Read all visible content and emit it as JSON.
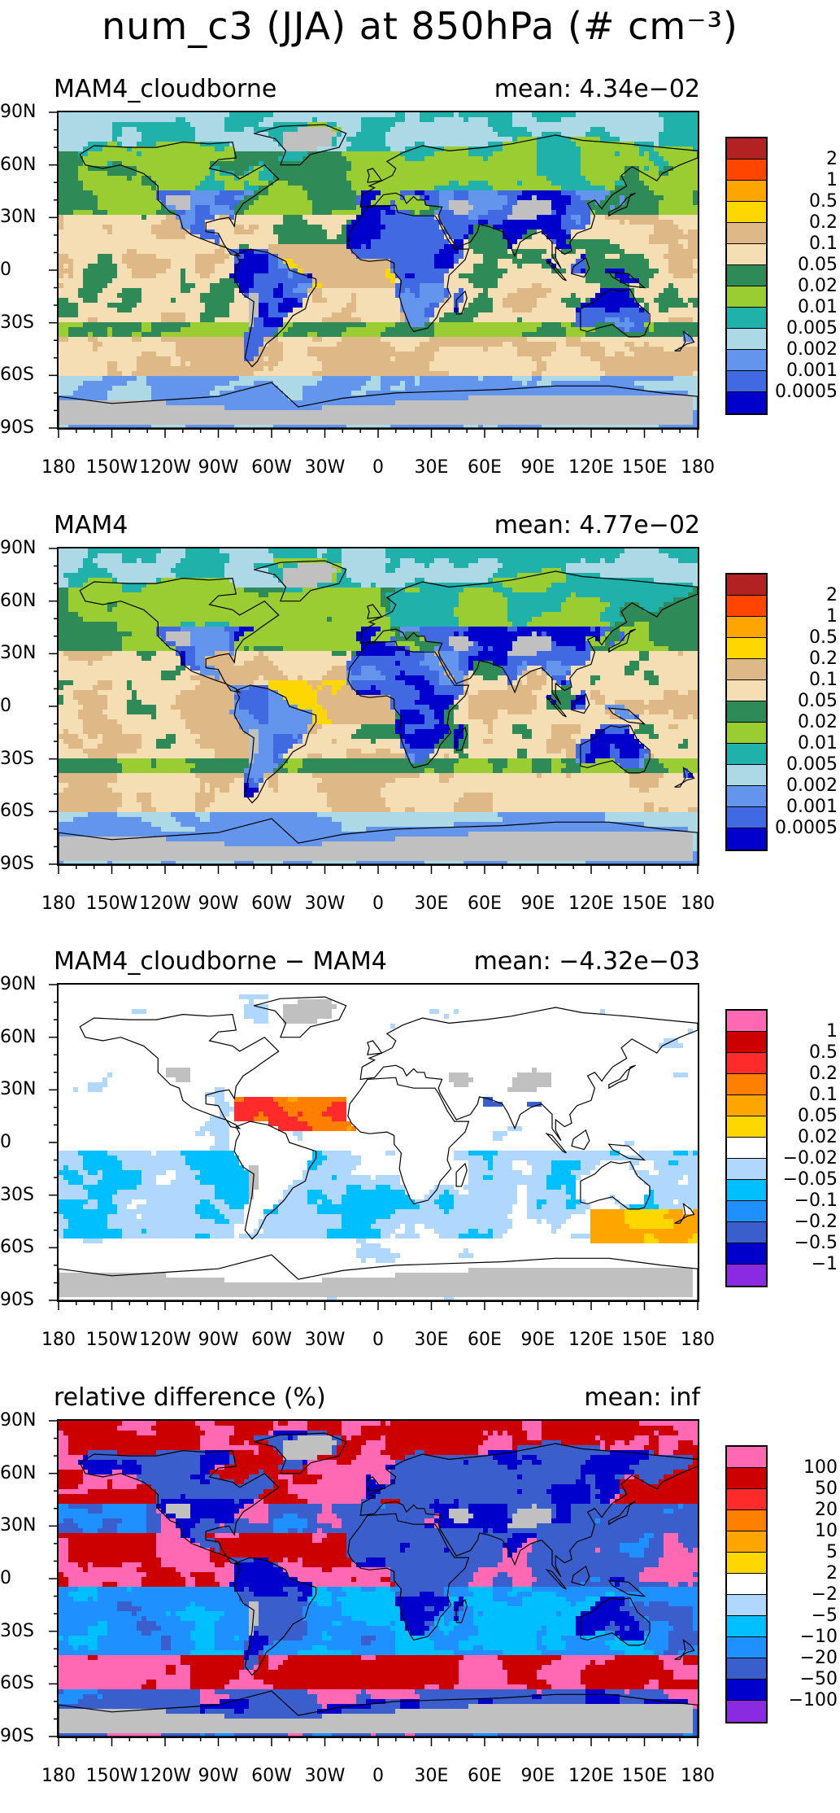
{
  "title": "num_c3 (JJA) at 850hPa (# cm⁻³)",
  "lat_labels": [
    "90N",
    "60N",
    "30N",
    "0",
    "30S",
    "60S",
    "90S"
  ],
  "lon_labels": [
    "180",
    "150W",
    "120W",
    "90W",
    "60W",
    "30W",
    "0",
    "30E",
    "60E",
    "90E",
    "120E",
    "150E",
    "180"
  ],
  "panels": [
    {
      "title": "MAM4_cloudborne",
      "mean_label": "mean:",
      "mean_value": "4.34e−02",
      "scale": "abs",
      "field_style": "cloudborne",
      "colorbar_labels": [
        "2",
        "1",
        "0.5",
        "0.2",
        "0.1",
        "0.05",
        "0.02",
        "0.01",
        "0.005",
        "0.002",
        "0.001",
        "0.0005"
      ],
      "colors": [
        "#b22222",
        "#ff4500",
        "#ffa500",
        "#ffd700",
        "#deb887",
        "#f5deb3",
        "#2e8b57",
        "#9acd32",
        "#20b2aa",
        "#add8e6",
        "#6495ed",
        "#4169e1",
        "#0000cd"
      ]
    },
    {
      "title": "MAM4",
      "mean_label": "mean:",
      "mean_value": "4.77e−02",
      "scale": "abs",
      "field_style": "mam4",
      "colorbar_labels": [
        "2",
        "1",
        "0.5",
        "0.2",
        "0.1",
        "0.05",
        "0.02",
        "0.01",
        "0.005",
        "0.002",
        "0.001",
        "0.0005"
      ],
      "colors": [
        "#b22222",
        "#ff4500",
        "#ffa500",
        "#ffd700",
        "#deb887",
        "#f5deb3",
        "#2e8b57",
        "#9acd32",
        "#20b2aa",
        "#add8e6",
        "#6495ed",
        "#4169e1",
        "#0000cd"
      ]
    },
    {
      "title": "MAM4_cloudborne − MAM4",
      "mean_label": "mean:",
      "mean_value": "−4.32e−03",
      "scale": "diff",
      "field_style": "diff",
      "colorbar_labels": [
        "1",
        "0.5",
        "0.2",
        "0.1",
        "0.05",
        "0.02",
        "−0.02",
        "−0.05",
        "−0.1",
        "−0.2",
        "−0.5",
        "−1"
      ],
      "colors": [
        "#ff69b4",
        "#cd0000",
        "#ff2a2a",
        "#ff7f00",
        "#ffa500",
        "#ffd700",
        "#ffffff",
        "#b0d8ff",
        "#00bfff",
        "#1e90ff",
        "#3a5fcd",
        "#0000cd",
        "#8a2be2"
      ]
    },
    {
      "title": "relative difference (%)",
      "mean_label": "mean:",
      "mean_value": "inf",
      "scale": "rel",
      "field_style": "rel",
      "colorbar_labels": [
        "100",
        "50",
        "20",
        "10",
        "5",
        "2",
        "−2",
        "−5",
        "−10",
        "−20",
        "−50",
        "−100"
      ],
      "colors": [
        "#ff69b4",
        "#cd0000",
        "#ff2a2a",
        "#ff7f00",
        "#ffa500",
        "#ffd700",
        "#ffffff",
        "#b0d8ff",
        "#00bfff",
        "#1e90ff",
        "#3a5fcd",
        "#0000cd",
        "#8a2be2"
      ]
    }
  ],
  "palette": {
    "missing_gray": "#c0c0c0",
    "coastline": "#000000"
  }
}
